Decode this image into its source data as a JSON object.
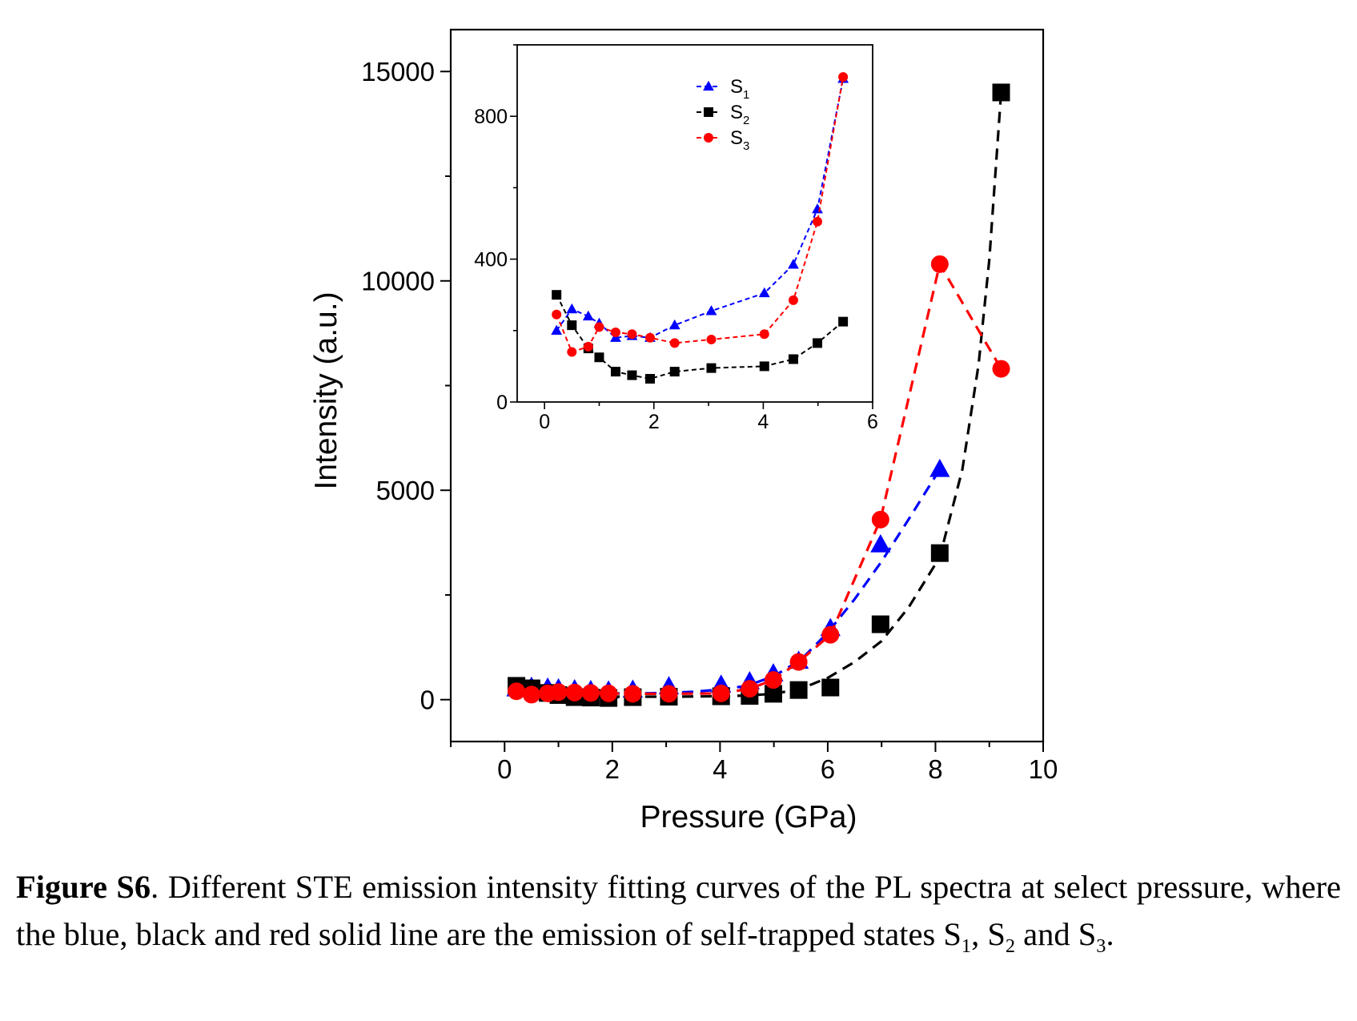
{
  "chart_data": [
    {
      "type": "scatter",
      "title": "",
      "xlabel": "Pressure (GPa)",
      "ylabel": "Intensity (a.u.)",
      "xlim": [
        -1,
        10
      ],
      "ylim": [
        -1000,
        16000
      ],
      "xticks": [
        0,
        2,
        4,
        6,
        8,
        10
      ],
      "yticks": [
        0,
        5000,
        10000,
        15000
      ],
      "grid": false,
      "series": [
        {
          "color": "#0000ff",
          "marker": "triangle",
          "x": [
            0.22,
            0.5,
            0.8,
            1.0,
            1.3,
            1.6,
            1.93,
            2.38,
            3.05,
            4.02,
            4.55,
            4.99,
            5.46,
            6.05,
            6.98,
            8.08
          ],
          "y": [
            260,
            300,
            280,
            260,
            240,
            220,
            210,
            230,
            310,
            350,
            430,
            620,
            920,
            1700,
            3700,
            5500
          ],
          "fit": {
            "x": [
              0.22,
              0.5,
              1.0,
              1.5,
              2.0,
              2.5,
              3.0,
              3.5,
              4.0,
              4.5,
              5.0,
              5.5,
              6.0,
              6.5,
              7.0,
              7.5,
              8.08
            ],
            "y": [
              230,
              210,
              180,
              160,
              150,
              150,
              160,
              190,
              240,
              330,
              560,
              950,
              1600,
              2400,
              3300,
              4300,
              5500
            ]
          }
        },
        {
          "color": "#000000",
          "marker": "square",
          "x": [
            0.22,
            0.5,
            0.8,
            1.0,
            1.3,
            1.6,
            1.93,
            2.38,
            3.05,
            4.02,
            4.55,
            4.99,
            5.46,
            6.05,
            6.98,
            8.08,
            9.22
          ],
          "y": [
            330,
            270,
            160,
            110,
            60,
            50,
            40,
            60,
            70,
            80,
            90,
            140,
            230,
            290,
            1800,
            3500,
            14500
          ],
          "fit": {
            "x": [
              0.22,
              1.0,
              2.0,
              3.0,
              4.0,
              4.5,
              5.0,
              5.5,
              6.0,
              6.5,
              7.0,
              7.5,
              8.08,
              8.5,
              8.8,
              9.0,
              9.22
            ],
            "y": [
              150,
              100,
              70,
              70,
              80,
              100,
              140,
              260,
              520,
              900,
              1400,
              2200,
              3400,
              5500,
              8000,
              10500,
              14500
            ]
          }
        },
        {
          "color": "#ff0000",
          "marker": "circle",
          "x": [
            0.22,
            0.5,
            0.8,
            1.0,
            1.3,
            1.6,
            1.93,
            2.38,
            3.05,
            4.02,
            4.55,
            4.99,
            5.46,
            6.05,
            6.98,
            8.08,
            9.22
          ],
          "y": [
            200,
            120,
            150,
            180,
            170,
            160,
            150,
            140,
            140,
            150,
            260,
            470,
            900,
            1550,
            4300,
            10400,
            7900
          ],
          "fit": {
            "x": [
              0.22,
              0.5,
              0.8,
              1.0,
              1.3,
              1.6,
              1.93,
              2.38,
              3.05,
              4.02,
              4.55,
              4.99,
              5.46,
              6.05,
              6.98,
              8.08,
              9.22
            ],
            "y": [
              200,
              120,
              150,
              180,
              170,
              160,
              150,
              140,
              140,
              150,
              260,
              470,
              900,
              1550,
              4300,
              10400,
              7900
            ]
          }
        }
      ]
    },
    {
      "type": "line",
      "title": "",
      "xlabel": "",
      "ylabel": "",
      "xlim": [
        -0.5,
        6
      ],
      "ylim": [
        0,
        1000
      ],
      "xticks": [
        0,
        2,
        4,
        6
      ],
      "yticks": [
        0,
        400,
        800
      ],
      "grid": false,
      "legend_position": "top-center",
      "series": [
        {
          "name": "S1",
          "label_main": "S",
          "label_sub": "1",
          "color": "#0000ff",
          "marker": "triangle",
          "x": [
            0.22,
            0.5,
            0.8,
            1.0,
            1.3,
            1.6,
            1.93,
            2.38,
            3.05,
            4.02,
            4.55,
            4.99,
            5.46
          ],
          "y": [
            200,
            260,
            240,
            220,
            180,
            185,
            180,
            215,
            255,
            305,
            385,
            540,
            905
          ]
        },
        {
          "name": "S2",
          "label_main": "S",
          "label_sub": "2",
          "color": "#000000",
          "marker": "square",
          "x": [
            0.22,
            0.5,
            0.8,
            1.0,
            1.3,
            1.6,
            1.93,
            2.38,
            3.05,
            4.02,
            4.55,
            4.99,
            5.46
          ],
          "y": [
            300,
            215,
            150,
            125,
            85,
            75,
            65,
            85,
            95,
            100,
            120,
            165,
            225
          ]
        },
        {
          "name": "S3",
          "label_main": "S",
          "label_sub": "3",
          "color": "#ff0000",
          "marker": "circle",
          "x": [
            0.22,
            0.5,
            0.8,
            1.0,
            1.3,
            1.6,
            1.93,
            2.38,
            3.05,
            4.02,
            4.55,
            4.99,
            5.46
          ],
          "y": [
            245,
            140,
            155,
            210,
            195,
            190,
            180,
            165,
            175,
            190,
            285,
            505,
            910
          ]
        }
      ]
    }
  ],
  "caption": {
    "label": "Figure S6",
    "text": ". Different STE emission intensity fitting curves of the PL spectra at select pressure, where the blue, black and red solid line are the emission of self-trapped states ",
    "s_letter": "S",
    "sub1": "1",
    "sep1": ", ",
    "sub2": "2",
    "sep2": " and ",
    "sub3": "3",
    "end": "."
  }
}
